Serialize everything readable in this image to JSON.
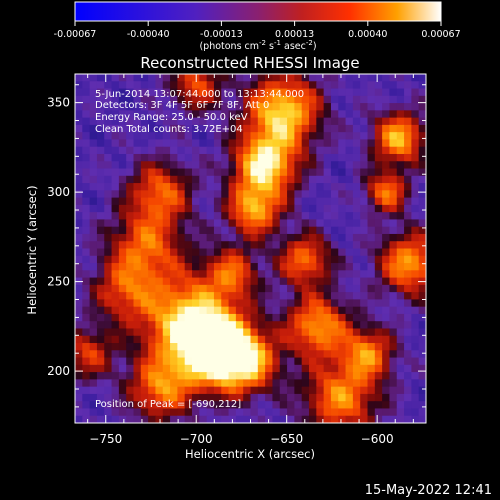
{
  "chart_data": {
    "type": "heatmap",
    "title": "Reconstructed RHESSI Image",
    "xlabel": "Heliocentric X (arcsec)",
    "ylabel": "Heliocentric Y (arcsec)",
    "x_ticks": [
      -750,
      -700,
      -650,
      -600
    ],
    "y_ticks": [
      200,
      250,
      300,
      350
    ],
    "xlim": [
      -767,
      -573
    ],
    "ylim": [
      171,
      366
    ],
    "colorbar": {
      "ticks": [
        "-0.00067",
        "-0.00040",
        "-0.00013",
        "0.00013",
        "0.00040",
        "0.00067"
      ],
      "min": -0.00067,
      "max": 0.00067,
      "label_text": "(photons cm",
      "label_exp1": "-2",
      "label_mid": " s",
      "label_exp2": "-1",
      "label_mid2": " asec",
      "label_exp3": "-2",
      "label_end": ")"
    },
    "annotations": [
      "5-Jun-2014 13:07:44.000 to 13:13:44.000",
      "Detectors: 3F 4F 5F 6F 7F 8F, Att 0",
      "Energy Range: 25.0 - 50.0 keV",
      "Clean    Total counts: 3.72E+04"
    ],
    "peak_label": "Position of Peak = [-690,212]",
    "peak": [
      -690,
      212
    ]
  },
  "footer": {
    "timestamp": "15-May-2022 12:41"
  }
}
